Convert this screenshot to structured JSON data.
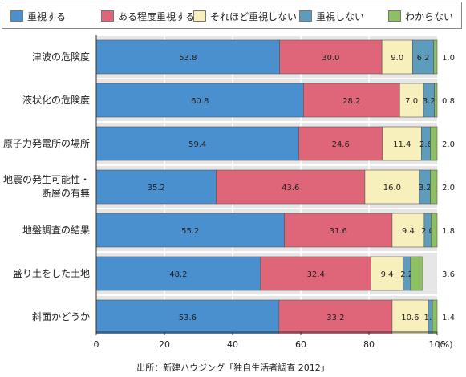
{
  "colors": {
    "plot_bg": "#e6e6e6",
    "gridline": "#ffffff",
    "axis": "#333333",
    "text": "#222222"
  },
  "source": "出所：新建ハウジング「独自生活者調査 2012」",
  "chart_data": {
    "type": "bar",
    "orientation": "horizontal",
    "stacked": true,
    "categories": [
      "津波の危険度",
      "液状化の危険度",
      "原子力発電所の場所",
      "地震の発生可能性・断層の有無",
      "地盤調査の結果",
      "盛り土をした土地",
      "斜面かどうか"
    ],
    "category_lines": [
      [
        "津波の危険度"
      ],
      [
        "液状化の危険度"
      ],
      [
        "原子力発電所の場所"
      ],
      [
        "地震の発生可能性・",
        "断層の有無"
      ],
      [
        "地盤調査の結果"
      ],
      [
        "盛り土をした土地"
      ],
      [
        "斜面かどうか"
      ]
    ],
    "series": [
      {
        "name": "重視する",
        "color": "#4a90cf",
        "values": [
          53.8,
          60.8,
          59.4,
          35.2,
          55.2,
          48.2,
          53.6
        ]
      },
      {
        "name": "ある程度重視する",
        "color": "#df6679",
        "values": [
          30.0,
          28.2,
          24.6,
          43.6,
          31.6,
          32.4,
          33.2
        ]
      },
      {
        "name": "それほど重視しない",
        "color": "#f7efbc",
        "values": [
          9.0,
          7.0,
          11.4,
          16.0,
          9.4,
          9.4,
          10.6
        ]
      },
      {
        "name": "重視しない",
        "color": "#5e9cbe",
        "values": [
          6.2,
          3.2,
          2.6,
          3.2,
          2.0,
          2.2,
          1.2
        ]
      },
      {
        "name": "わからない",
        "color": "#8cc063",
        "values": [
          1.0,
          0.8,
          2.0,
          2.0,
          1.8,
          3.6,
          1.4
        ]
      }
    ],
    "series_labels": [
      [
        "53.8",
        "30.0",
        "9.0",
        "6.2",
        "1.0"
      ],
      [
        "60.8",
        "28.2",
        "7.0",
        "3.2",
        "0.8"
      ],
      [
        "59.4",
        "24.6",
        "11.4",
        "2.6",
        "2.0"
      ],
      [
        "35.2",
        "43.6",
        "16.0",
        "3.2",
        "2.0"
      ],
      [
        "55.2",
        "31.6",
        "9.4",
        "2.0",
        "1.8"
      ],
      [
        "48.2",
        "32.4",
        "9.4",
        "2.2",
        "3.6"
      ],
      [
        "53.6",
        "33.2",
        "10.6",
        "1.2",
        "1.4"
      ]
    ],
    "xlim": [
      0,
      100
    ],
    "xticks": [
      "0",
      "20",
      "40",
      "60",
      "80",
      "100"
    ],
    "xunit": "(%)",
    "grid": true,
    "legend_position": "top"
  }
}
